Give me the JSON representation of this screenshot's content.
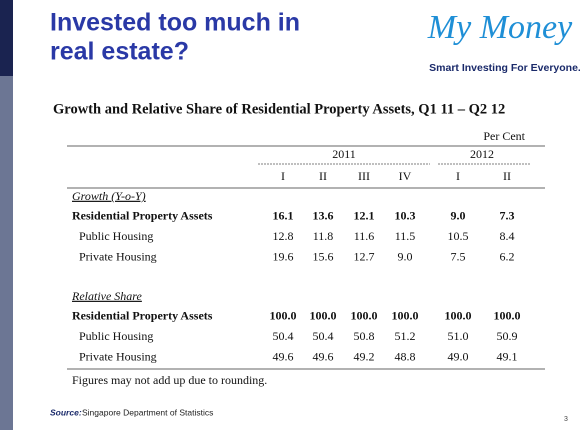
{
  "header": {
    "title": [
      "Invested too much in",
      "real estate?"
    ]
  },
  "logo": {
    "name": "My Money",
    "tagline": "Smart Investing For Everyone."
  },
  "table": {
    "title": "Growth and Relative Share of  Residential Property Assets, Q1 11 – Q2 12",
    "unit": "Per Cent",
    "years": [
      "2011",
      "2012"
    ],
    "quarters": [
      "I",
      "II",
      "III",
      "IV",
      "I",
      "II"
    ],
    "sections": [
      {
        "heading": "Growth (Y-o-Y)",
        "rows": [
          {
            "label": "Residential Property Assets",
            "bold": true,
            "values": [
              "16.1",
              "13.6",
              "12.1",
              "10.3",
              "9.0",
              "7.3"
            ]
          },
          {
            "label": "Public Housing",
            "bold": false,
            "values": [
              "12.8",
              "11.8",
              "11.6",
              "11.5",
              "10.5",
              "8.4"
            ]
          },
          {
            "label": "Private Housing",
            "bold": false,
            "values": [
              "19.6",
              "15.6",
              "12.7",
              "9.0",
              "7.5",
              "6.2"
            ]
          }
        ]
      },
      {
        "heading": "Relative Share",
        "rows": [
          {
            "label": "Residential Property Assets",
            "bold": true,
            "values": [
              "100.0",
              "100.0",
              "100.0",
              "100.0",
              "100.0",
              "100.0"
            ]
          },
          {
            "label": "Public Housing",
            "bold": false,
            "values": [
              "50.4",
              "50.4",
              "50.8",
              "51.2",
              "51.0",
              "50.9"
            ]
          },
          {
            "label": "Private Housing",
            "bold": false,
            "values": [
              "49.6",
              "49.6",
              "49.2",
              "48.8",
              "49.0",
              "49.1"
            ]
          }
        ]
      }
    ],
    "footnote": "Figures may not add up due to rounding."
  },
  "footer": {
    "source_label": "Source:",
    "source": "Singapore Department of Statistics",
    "page": "3"
  }
}
